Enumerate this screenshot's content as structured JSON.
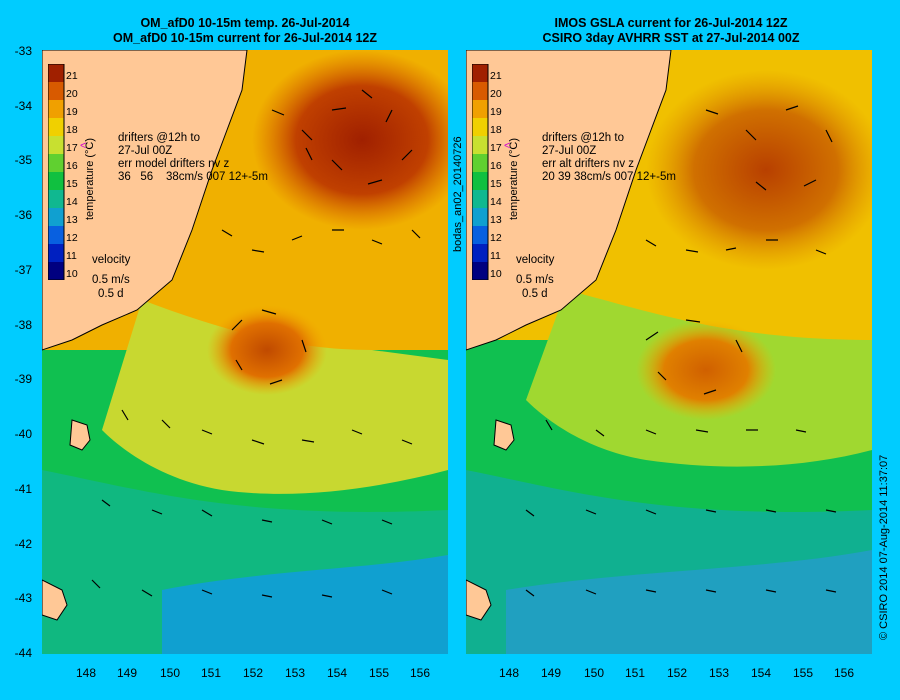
{
  "left_panel": {
    "title_line1": "OM_afD0 10-15m temp. 26-Jul-2014",
    "title_line2": "OM_afD0 10-15m current for 26-Jul-2014 12Z",
    "drifters_line1": "drifters @12h to",
    "drifters_line2": "27-Jul 00Z",
    "err_line1": "err model drifters nv z",
    "err_line2": "36   56    38cm/s 007 12+-5m",
    "velocity_label": "velocity",
    "velocity_scale": "0.5 m/s",
    "velocity_time": "0.5 d",
    "marker": "<"
  },
  "right_panel": {
    "title_line1": "IMOS GSLA current for 26-Jul-2014 12Z",
    "title_line2": "CSIRO 3day AVHRR SST at 27-Jul-2014 00Z",
    "drifters_line1": "drifters @12h to",
    "drifters_line2": "27-Jul 00Z",
    "err_line1": "err alt drifters nv z",
    "err_line2": "20 39 38cm/s 007 12+-5m",
    "velocity_label": "velocity",
    "velocity_scale": "0.5 m/s",
    "velocity_time": "0.5 d",
    "marker": "<"
  },
  "colorbar": {
    "label": "temperature (°C)",
    "ticks": [
      "21",
      "20",
      "19",
      "18",
      "17",
      "16",
      "15",
      "14",
      "13",
      "12",
      "11",
      "10"
    ],
    "colors": [
      "#a02000",
      "#d85a00",
      "#f0a000",
      "#f0d000",
      "#c8e030",
      "#60d030",
      "#10c040",
      "#10b890",
      "#10a0d0",
      "#0860e0",
      "#0020c0",
      "#000080"
    ]
  },
  "axes": {
    "lat_ticks": [
      "-33",
      "-34",
      "-35",
      "-36",
      "-37",
      "-38",
      "-39",
      "-40",
      "-41",
      "-42",
      "-43",
      "-44"
    ],
    "lon_ticks": [
      "148",
      "149",
      "150",
      "151",
      "152",
      "153",
      "154",
      "155",
      "156"
    ]
  },
  "side_labels": {
    "file_id": "bodas_an02_20140726",
    "credit": "© CSIRO 2014   07-Aug-2014 11:37:07"
  },
  "colors": {
    "background": "#00ccff",
    "land": "#ffc896",
    "deep_warm": "#b83c00",
    "warm": "#f0a000",
    "mid": "#c8e030",
    "green": "#10c040",
    "cool": "#10a0d0"
  }
}
